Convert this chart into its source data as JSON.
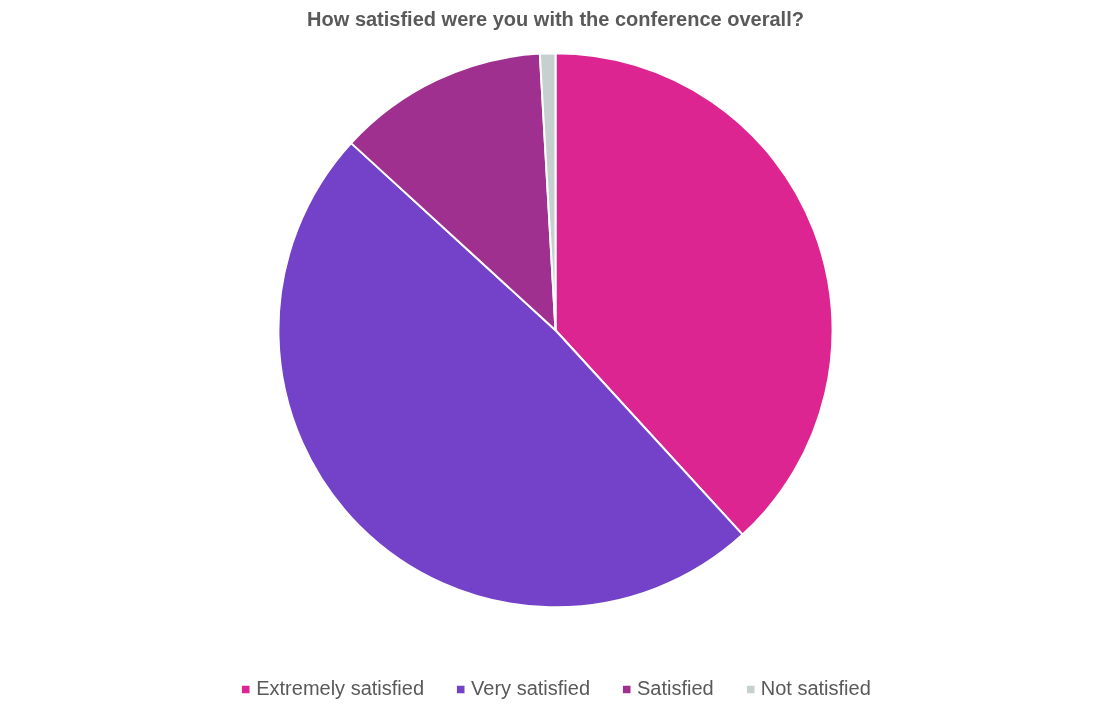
{
  "chart_data": {
    "type": "pie",
    "title": "How satisfied were you with the conference overall?",
    "categories": [
      "Extremely satisfied",
      "Very satisfied",
      "Satisfied",
      "Not satisfied"
    ],
    "values": [
      38.2,
      48.6,
      12.3,
      0.9
    ],
    "colors": [
      "#dc2590",
      "#7442c8",
      "#a0308f",
      "#c5d0cf"
    ],
    "legend": "bottom"
  }
}
